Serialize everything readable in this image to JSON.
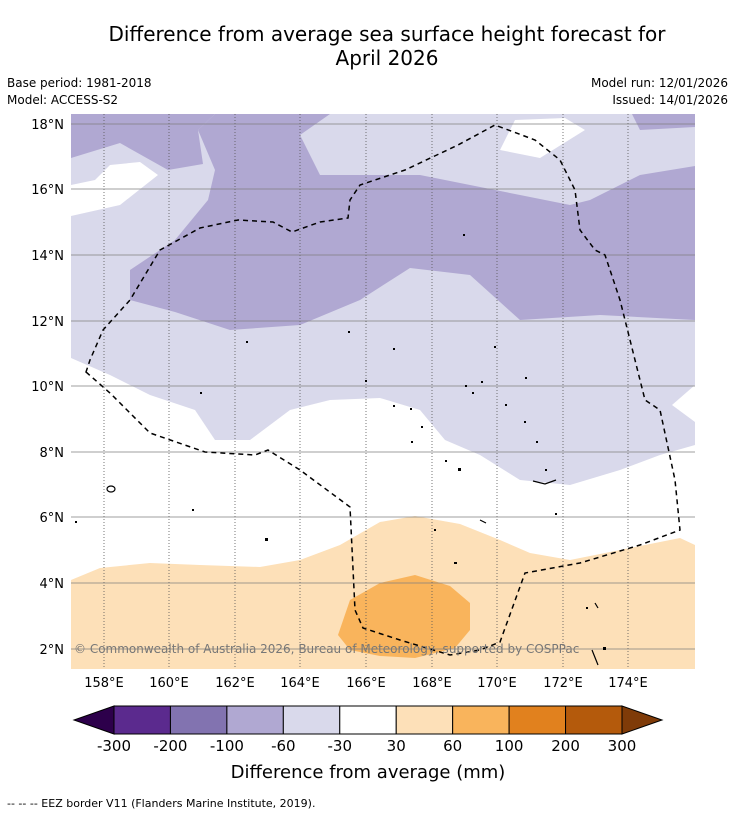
{
  "title": {
    "line1": "Difference from average sea surface height forecast for",
    "line2": "April 2026"
  },
  "meta": {
    "base_period": "Base period: 1981-2018",
    "model": "Model: ACCESS-S2",
    "model_run": "Model run: 12/01/2026",
    "issued": "Issued: 14/01/2026"
  },
  "map": {
    "lon_labels": [
      "158°E",
      "160°E",
      "162°E",
      "164°E",
      "166°E",
      "168°E",
      "170°E",
      "172°E",
      "174°E"
    ],
    "lat_labels": [
      "18°N",
      "16°N",
      "14°N",
      "12°N",
      "10°N",
      "8°N",
      "6°N",
      "4°N",
      "2°N"
    ],
    "copyright": "© Commonwealth of Australia 2026, Bureau of Meteorology, supported by COSPPac"
  },
  "colorbar": {
    "title": "Difference from average (mm)",
    "labels": [
      "-300",
      "-200",
      "-100",
      "-60",
      "-30",
      "30",
      "60",
      "100",
      "200",
      "300"
    ],
    "colors": [
      "#5b2a8e",
      "#8273b0",
      "#b0a8d2",
      "#d9d9eb",
      "#ffffff",
      "#fde0b8",
      "#f9b45c",
      "#e1811e",
      "#b45a0c"
    ],
    "under_color": "#2d004b",
    "over_color": "#7f3b08"
  },
  "footer": {
    "legend": "--  --  -- EEZ border V11 (Flanders Marine Institute, 2019)."
  }
}
